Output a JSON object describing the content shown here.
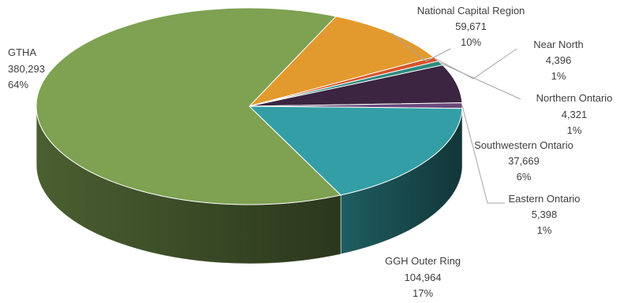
{
  "chart_data": {
    "type": "pie",
    "title": "",
    "style": "3d-exploded-none",
    "slices": [
      {
        "name": "National Capital Region",
        "value": 59671,
        "value_label": "59,671",
        "percent_label": "10%",
        "color": "#e29a2e"
      },
      {
        "name": "Near North",
        "value": 4396,
        "value_label": "4,396",
        "percent_label": "1%",
        "color": "#d9532c"
      },
      {
        "name": "Northern Ontario",
        "value": 4321,
        "value_label": "4,321",
        "percent_label": "1%",
        "color": "#2f8a7f"
      },
      {
        "name": "Southwestern Ontario",
        "value": 37669,
        "value_label": "37,669",
        "percent_label": "6%",
        "color": "#3b2541"
      },
      {
        "name": "Eastern Ontario",
        "value": 5398,
        "value_label": "5,398",
        "percent_label": "1%",
        "color": "#6b4a7a"
      },
      {
        "name": "GGH Outer Ring",
        "value": 104964,
        "value_label": "104,964",
        "percent_label": "17%",
        "color": "#339ea5"
      },
      {
        "name": "GTHA",
        "value": 380293,
        "value_label": "380,293",
        "percent_label": "64%",
        "color": "#7ea152"
      }
    ],
    "legend": "none"
  }
}
